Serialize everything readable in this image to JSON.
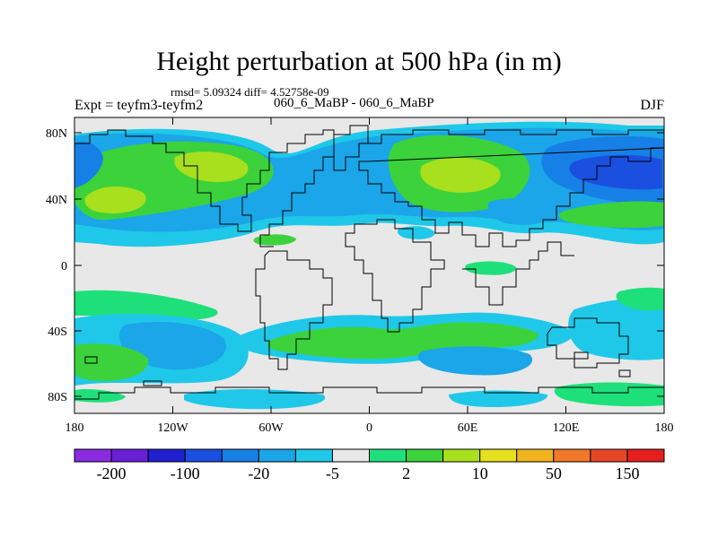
{
  "title": "Height perturbation at 500 hPa (in m)",
  "stats": "rmsd= 5.09324 diff= 4.52758e-09",
  "expt": "Expt = teyfm3-teyfm2",
  "runs": "060_6_MaBP - 060_6_MaBP",
  "season": "DJF",
  "axes": {
    "x_ticks": [
      "180",
      "120W",
      "60W",
      "0",
      "60E",
      "120E",
      "180"
    ],
    "y_ticks": [
      "80N",
      "40N",
      "0",
      "40S",
      "80S"
    ]
  },
  "colorbar": {
    "colors": [
      "#8a2be2",
      "#6a1ed6",
      "#2020d0",
      "#1a4fe0",
      "#1780e6",
      "#1aa6e8",
      "#1fc8e8",
      "#e8e8e8",
      "#1ee07a",
      "#3cd23c",
      "#a8e01e",
      "#e6e01e",
      "#f0b41e",
      "#f07828",
      "#e64628",
      "#e61e1e"
    ],
    "labels": [
      "-200",
      "-100",
      "-20",
      "-5",
      "2",
      "10",
      "50",
      "150"
    ]
  },
  "palette": {
    "neutral": "#e8e8e8",
    "lightblue": "#1fc8e8",
    "blue": "#1aa6e8",
    "darkblue": "#1780e6",
    "deepblue": "#1a4fe0",
    "teal": "#1ee07a",
    "green": "#3cd23c",
    "yellowgreen": "#a8e01e"
  }
}
